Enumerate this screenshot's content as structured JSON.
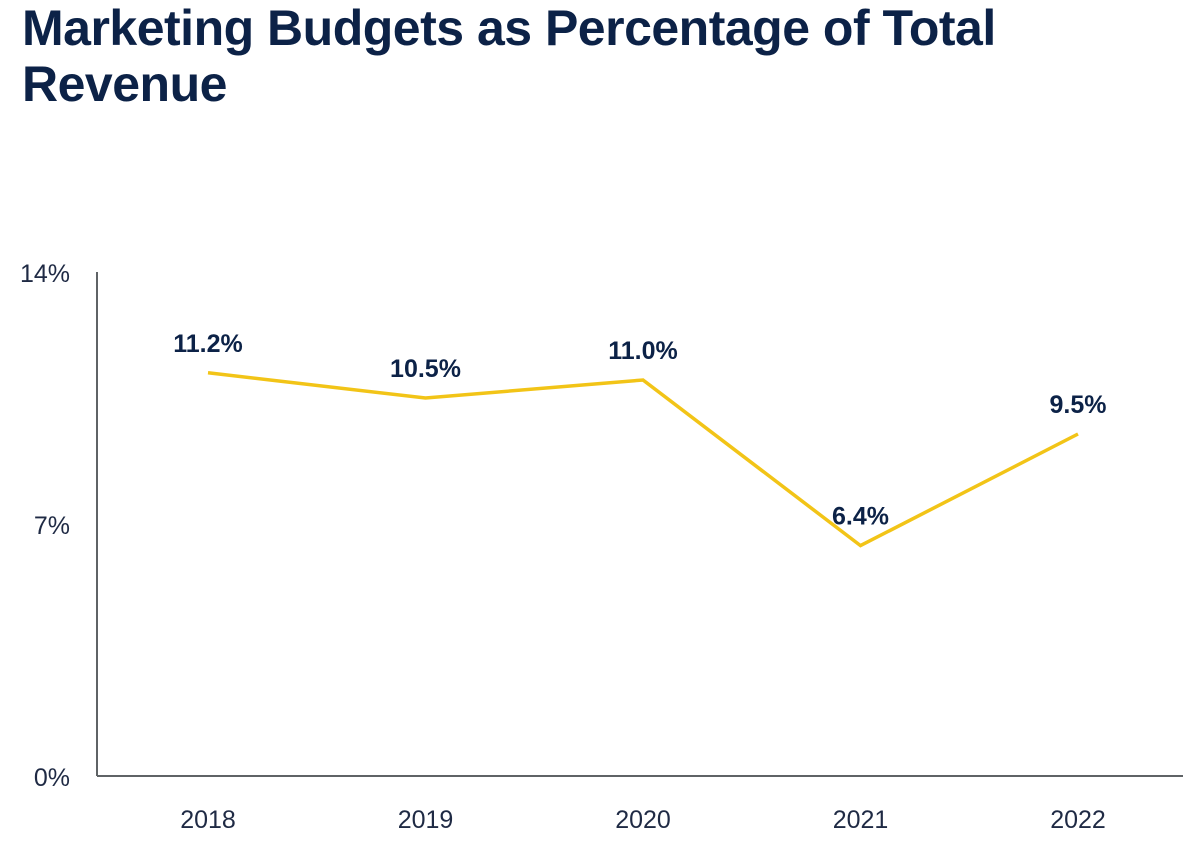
{
  "colors": {
    "title": "#0c2247",
    "line": "#f2c417",
    "axis": "#5f6366",
    "data_label": "#0c2247",
    "tick_label": "#1f2a44"
  },
  "chart_data": {
    "type": "line",
    "title": "Marketing Budgets as Percentage of Total Revenue",
    "xlabel": "",
    "ylabel": "",
    "categories": [
      "2018",
      "2019",
      "2020",
      "2021",
      "2022"
    ],
    "series": [
      {
        "values": [
          11.2,
          10.5,
          11.0,
          6.4,
          9.5
        ],
        "data_labels": [
          "11.2%",
          "10.5%",
          "11.0%",
          "6.4%",
          "9.5%"
        ]
      }
    ],
    "ylim": [
      0,
      14
    ],
    "y_ticks": [
      {
        "value": 0,
        "label": "0%"
      },
      {
        "value": 7,
        "label": "7%"
      },
      {
        "value": 14,
        "label": "14%"
      }
    ],
    "grid": false,
    "legend": "none"
  }
}
